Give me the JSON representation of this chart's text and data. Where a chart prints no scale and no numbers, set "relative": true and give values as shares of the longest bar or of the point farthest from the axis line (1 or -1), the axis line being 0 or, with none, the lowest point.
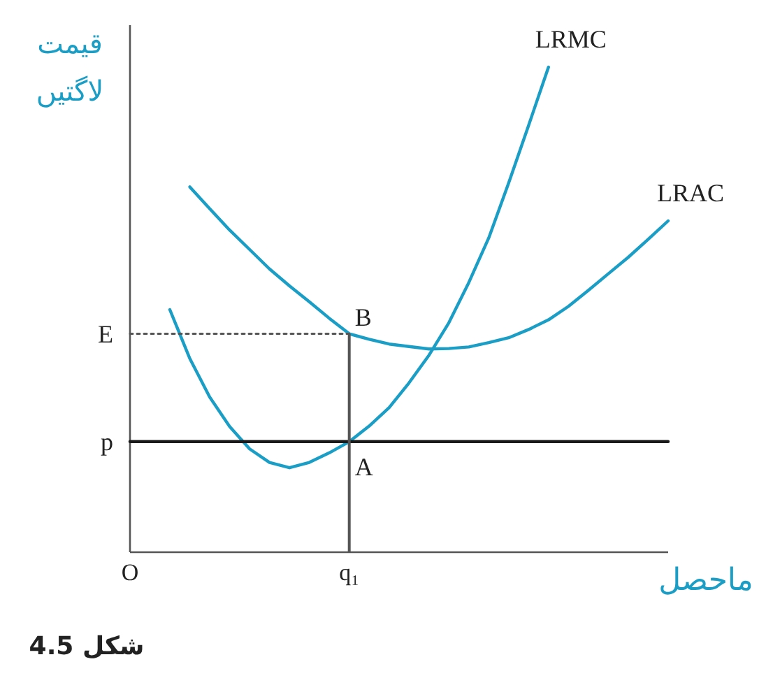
{
  "chart_data": {
    "type": "line",
    "relative": true,
    "xlabel": "ماحصل",
    "ylabel": "قیمت\nلاگتیں",
    "categories": [
      "O",
      null,
      null,
      null,
      null,
      null,
      null,
      null,
      null,
      null,
      null,
      "q₁",
      null,
      null,
      null,
      null,
      null,
      null,
      null,
      null,
      null,
      null,
      null,
      null,
      null,
      null,
      null,
      null
    ],
    "series": [
      {
        "name": "LRMC",
        "color": "#1a9ec6",
        "values": [
          null,
          null,
          0.5,
          0.399,
          0.32,
          0.259,
          0.213,
          0.185,
          0.174,
          0.185,
          0.205,
          0.228,
          0.26,
          0.298,
          0.349,
          0.406,
          0.473,
          0.556,
          0.648,
          0.761,
          0.88,
          1.0,
          null,
          null,
          null,
          null,
          null,
          null
        ]
      },
      {
        "name": "LRAC",
        "color": "#1a9ec6",
        "values": [
          null,
          null,
          null,
          0.753,
          0.708,
          0.664,
          0.624,
          0.584,
          0.549,
          0.516,
          0.482,
          0.45,
          0.439,
          0.429,
          0.424,
          0.419,
          0.42,
          0.423,
          0.432,
          0.442,
          0.459,
          0.479,
          0.507,
          0.54,
          0.574,
          0.608,
          0.645,
          0.683
        ]
      },
      {
        "color": "#1a1a1a",
        "values": [
          0.228,
          0.228,
          0.228,
          0.228,
          0.228,
          0.228,
          0.228,
          0.228,
          0.228,
          0.228,
          0.228,
          0.228,
          0.228,
          0.228,
          0.228,
          0.228,
          0.228,
          0.228,
          0.228,
          0.228,
          0.228,
          0.228,
          0.228,
          0.228,
          0.228,
          0.228,
          0.228,
          0.228
        ]
      },
      {
        "color": "#555555",
        "line_style": "dotted",
        "values": [
          0.45,
          0.45,
          0.45,
          0.45,
          0.45,
          0.45,
          0.45,
          0.45,
          0.45,
          0.45,
          0.45,
          0.45,
          null,
          null,
          null,
          null,
          null,
          null,
          null,
          null,
          null,
          null,
          null,
          null,
          null,
          null,
          null,
          null
        ]
      },
      {
        "type": "bar",
        "color": "#555555",
        "values": [
          null,
          null,
          null,
          null,
          null,
          null,
          null,
          null,
          null,
          null,
          null,
          0.45,
          null,
          null,
          null,
          null,
          null,
          null,
          null,
          null,
          null,
          null,
          null,
          null,
          null,
          null,
          null,
          null
        ]
      }
    ],
    "annotations": [
      {
        "text": "E",
        "x": "O",
        "y": 0.45
      },
      {
        "text": "p",
        "x": "O",
        "y": 0.228
      },
      {
        "text": "B",
        "x": "q₁",
        "y": 0.45
      },
      {
        "text": "A",
        "x": "q₁",
        "y": 0.228
      },
      "شکل 4.5"
    ]
  }
}
